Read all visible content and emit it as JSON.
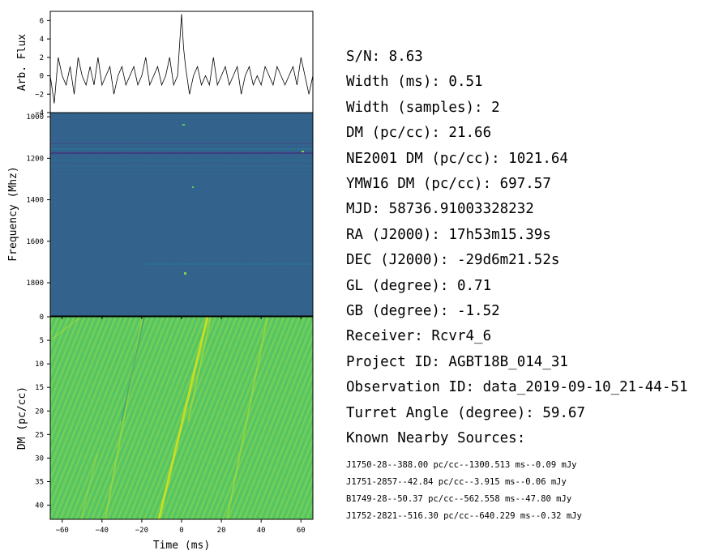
{
  "chart_data": [
    {
      "type": "line",
      "ylabel": "Arb. Flux",
      "ylim": [
        -4,
        7
      ],
      "yticks": [
        "6",
        "4",
        "2",
        "0",
        "−2",
        "−4"
      ],
      "xlim": [
        -66,
        66
      ],
      "series": [
        {
          "x": [
            -66,
            -64,
            -62,
            -60,
            -58,
            -56,
            -54,
            -52,
            -50,
            -48,
            -46,
            -44,
            -42,
            -40,
            -38,
            -36,
            -34,
            -32,
            -30,
            -28,
            -26,
            -24,
            -22,
            -20,
            -18,
            -16,
            -14,
            -12,
            -10,
            -8,
            -6,
            -4,
            -2,
            0,
            1,
            2,
            4,
            6,
            8,
            10,
            12,
            14,
            16,
            18,
            20,
            22,
            24,
            26,
            28,
            30,
            32,
            34,
            36,
            38,
            40,
            42,
            44,
            46,
            48,
            50,
            52,
            54,
            56,
            58,
            60,
            62,
            64,
            66
          ],
          "y": [
            0,
            -3,
            2,
            0,
            -1,
            1,
            -2,
            2,
            0,
            -1,
            1,
            -1,
            2,
            -1,
            0,
            1,
            -2,
            0,
            1,
            -1,
            0,
            1,
            -1,
            0,
            2,
            -1,
            0,
            1,
            -1,
            0,
            2,
            -1,
            0,
            6.7,
            3,
            1,
            -2,
            0,
            1,
            -1,
            0,
            -1,
            2,
            -1,
            0,
            1,
            -1,
            0,
            1,
            -2,
            0,
            1,
            -1,
            0,
            -1,
            1,
            0,
            -1,
            1,
            0,
            -1,
            0,
            1,
            -1,
            2,
            0,
            -2,
            0
          ]
        }
      ]
    },
    {
      "type": "heatmap",
      "ylabel": "Frequency (Mhz)",
      "yticks": [
        "1000",
        "1200",
        "1400",
        "1600",
        "1800"
      ],
      "ylim": [
        1960,
        980
      ]
    },
    {
      "type": "heatmap",
      "xlabel": "Time (ms)",
      "ylabel": "DM (pc/cc)",
      "xticks": [
        "−60",
        "−40",
        "−20",
        "0",
        "20",
        "40",
        "60"
      ],
      "yticks": [
        "0",
        "5",
        "10",
        "15",
        "20",
        "25",
        "30",
        "35",
        "40"
      ],
      "xlim": [
        -66,
        66
      ],
      "ylim": [
        43,
        0
      ]
    }
  ],
  "info": {
    "lines": [
      "S/N: 8.63",
      "Width (ms): 0.51",
      "Width (samples): 2",
      "DM (pc/cc): 21.66",
      "NE2001 DM (pc/cc): 1021.64",
      "YMW16 DM (pc/cc): 697.57",
      "MJD: 58736.91003328232",
      "RA (J2000): 17h53m15.39s",
      "DEC (J2000): -29d6m21.52s",
      "GL (degree): 0.71",
      "GB (degree): -1.52",
      "Receiver: Rcvr4_6",
      "Project ID: AGBT18B_014_31",
      "Observation ID: data_2019-09-10_21-44-51",
      "Turret Angle (degree): 59.67",
      "Known Nearby Sources:"
    ],
    "sources": [
      "J1750-28--388.00 pc/cc--1300.513 ms--0.09 mJy",
      "J1751-2857--42.84 pc/cc--3.915 ms--0.06 mJy",
      "B1749-28--50.37 pc/cc--562.558 ms--47.80 mJy",
      "J1752-2821--516.30 pc/cc--640.229 ms--0.32 mJy"
    ]
  },
  "colors": {
    "freq_bg": "#33638d",
    "dm_bg": "#5ec962",
    "sweep": "#d8e219",
    "line": "#000000"
  }
}
